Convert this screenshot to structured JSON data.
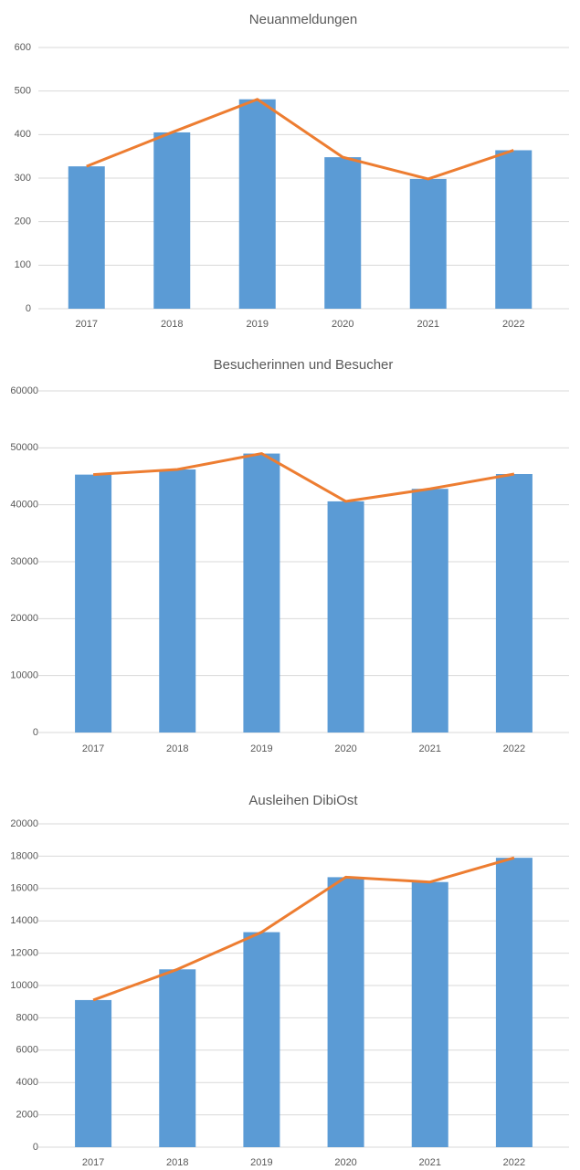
{
  "chart_data": [
    {
      "type": "combo",
      "title": "Neuanmeldungen",
      "categories": [
        "2017",
        "2018",
        "2019",
        "2020",
        "2021",
        "2022"
      ],
      "series": [
        {
          "type": "bar",
          "color": "#5b9bd5",
          "values": [
            327,
            405,
            481,
            348,
            298,
            364
          ]
        },
        {
          "type": "line",
          "color": "#ed7d31",
          "values": [
            327,
            405,
            481,
            348,
            298,
            364
          ]
        }
      ],
      "ylim": [
        0,
        600
      ],
      "yticks": [
        0,
        100,
        200,
        300,
        400,
        500,
        600
      ],
      "grid": true
    },
    {
      "type": "combo",
      "title": "Besucherinnen und Besucher",
      "categories": [
        "2017",
        "2018",
        "2019",
        "2020",
        "2021",
        "2022"
      ],
      "series": [
        {
          "type": "bar",
          "color": "#5b9bd5",
          "values": [
            45300,
            46200,
            49000,
            40600,
            42800,
            45400
          ]
        },
        {
          "type": "line",
          "color": "#ed7d31",
          "values": [
            45300,
            46200,
            49000,
            40600,
            42800,
            45400
          ]
        }
      ],
      "ylim": [
        0,
        60000
      ],
      "yticks": [
        0,
        10000,
        20000,
        30000,
        40000,
        50000,
        60000
      ],
      "grid": true
    },
    {
      "type": "combo",
      "title": "Ausleihen DibiOst",
      "categories": [
        "2017",
        "2018",
        "2019",
        "2020",
        "2021",
        "2022"
      ],
      "series": [
        {
          "type": "bar",
          "color": "#5b9bd5",
          "values": [
            9100,
            11000,
            13300,
            16700,
            16400,
            17900
          ]
        },
        {
          "type": "line",
          "color": "#ed7d31",
          "values": [
            9100,
            11000,
            13300,
            16700,
            16400,
            17900
          ]
        }
      ],
      "ylim": [
        0,
        20000
      ],
      "yticks": [
        0,
        2000,
        4000,
        6000,
        8000,
        10000,
        12000,
        14000,
        16000,
        18000,
        20000
      ],
      "grid": true
    }
  ]
}
